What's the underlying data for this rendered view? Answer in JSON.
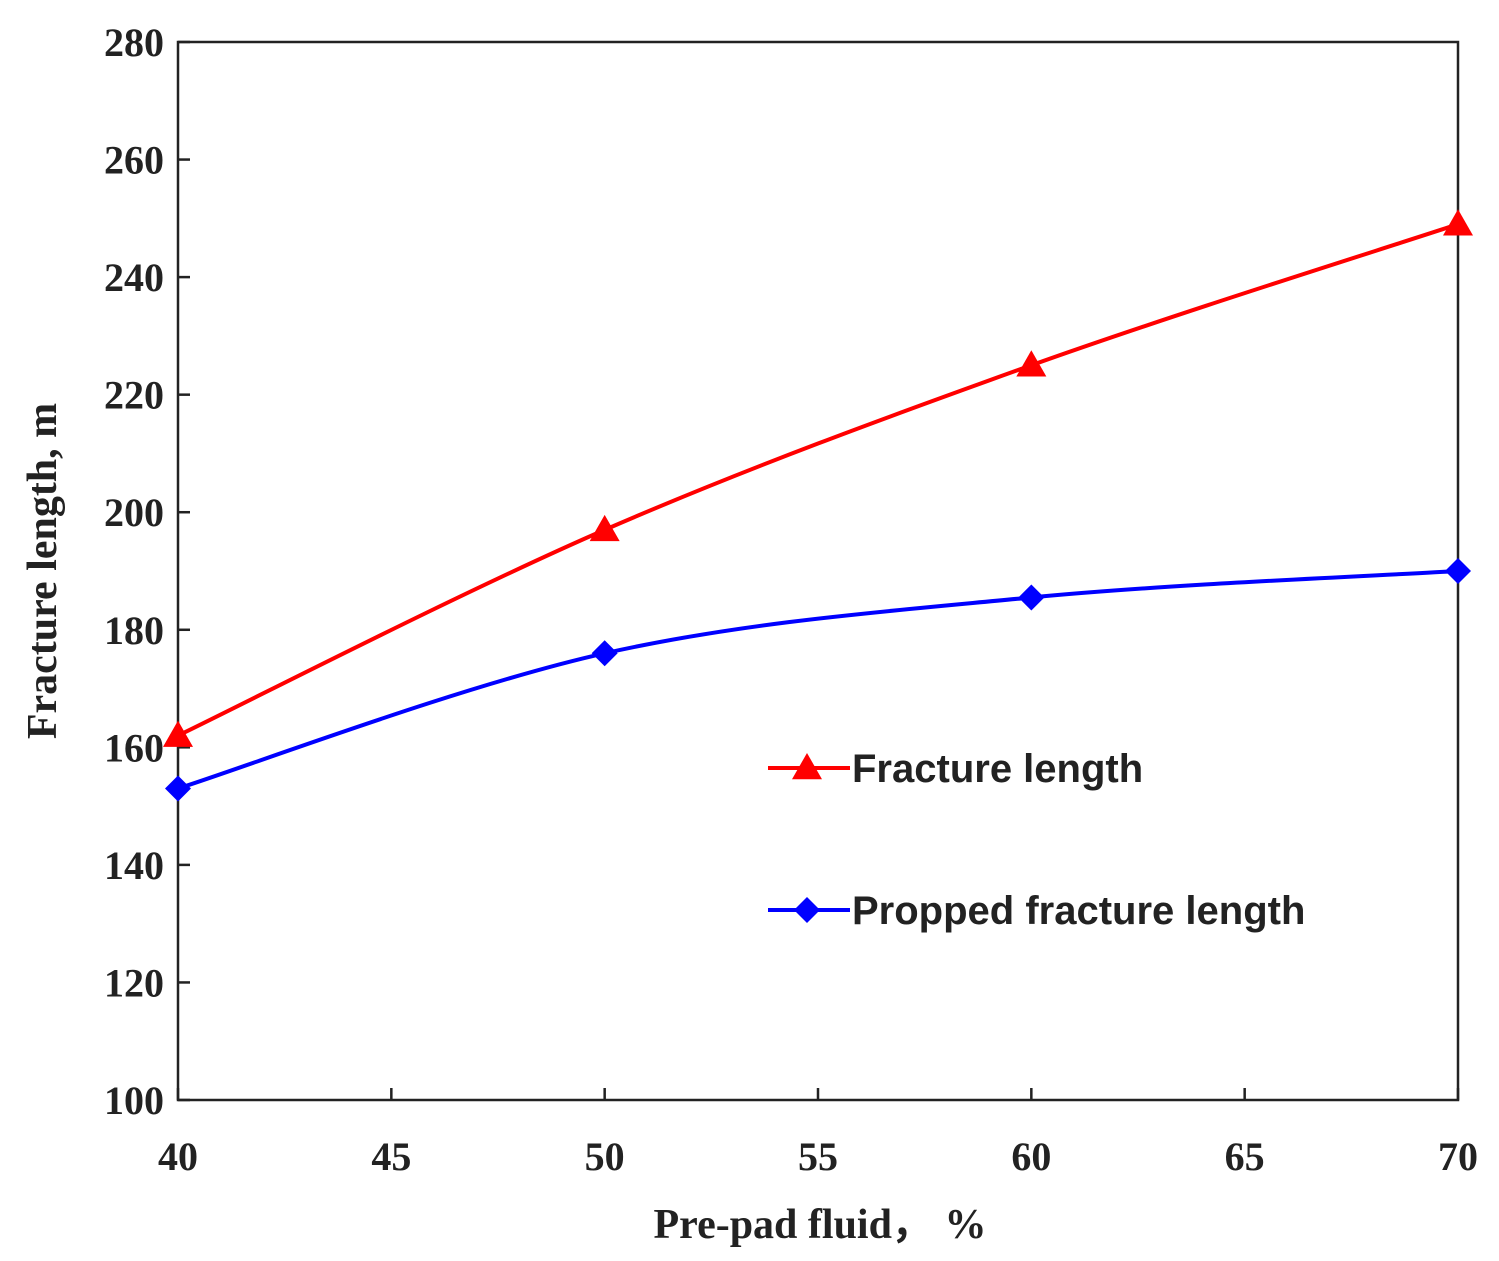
{
  "chart_data": {
    "type": "line",
    "xlabel": "Pre-pad fluid， %",
    "ylabel": "Fracture length, m",
    "xlim": [
      40,
      70
    ],
    "ylim": [
      100,
      280
    ],
    "x_ticks": [
      40,
      45,
      50,
      55,
      60,
      65,
      70
    ],
    "y_ticks": [
      100,
      120,
      140,
      160,
      180,
      200,
      220,
      240,
      260,
      280
    ],
    "grid": false,
    "legend_position": "center-right",
    "x": [
      40,
      50,
      60,
      70
    ],
    "series": [
      {
        "name": "Fracture length",
        "values": [
          162,
          197,
          225,
          249
        ],
        "color": "#ff0000",
        "marker": "triangle"
      },
      {
        "name": "Propped fracture length",
        "values": [
          153,
          176,
          185.5,
          190
        ],
        "color": "#0000ff",
        "marker": "diamond"
      }
    ]
  }
}
